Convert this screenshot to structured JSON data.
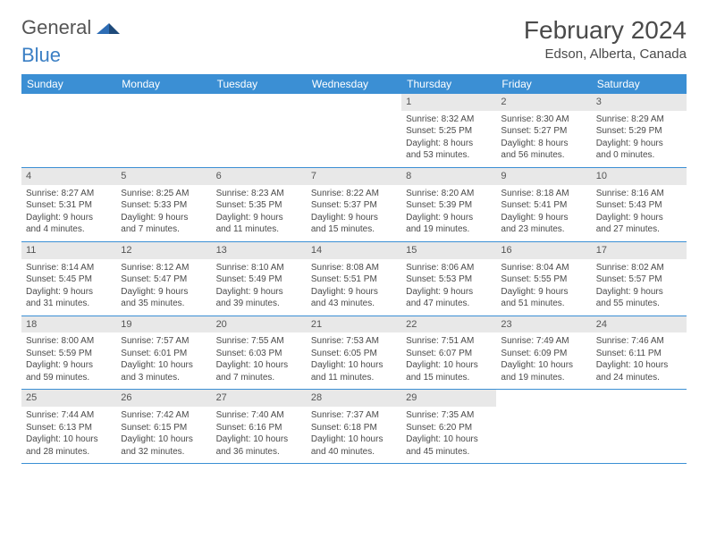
{
  "logo": {
    "part1": "General",
    "part2": "Blue"
  },
  "title": "February 2024",
  "location": "Edson, Alberta, Canada",
  "colors": {
    "header_bg": "#3b8fd4",
    "header_text": "#ffffff",
    "daynum_bg": "#e8e8e8",
    "border": "#3b8fd4",
    "text": "#4a4a4a",
    "logo_gray": "#555555",
    "logo_blue": "#3b7fc4"
  },
  "day_headers": [
    "Sunday",
    "Monday",
    "Tuesday",
    "Wednesday",
    "Thursday",
    "Friday",
    "Saturday"
  ],
  "weeks": [
    [
      {
        "n": "",
        "sr": "",
        "ss": "",
        "dl1": "",
        "dl2": ""
      },
      {
        "n": "",
        "sr": "",
        "ss": "",
        "dl1": "",
        "dl2": ""
      },
      {
        "n": "",
        "sr": "",
        "ss": "",
        "dl1": "",
        "dl2": ""
      },
      {
        "n": "",
        "sr": "",
        "ss": "",
        "dl1": "",
        "dl2": ""
      },
      {
        "n": "1",
        "sr": "Sunrise: 8:32 AM",
        "ss": "Sunset: 5:25 PM",
        "dl1": "Daylight: 8 hours",
        "dl2": "and 53 minutes."
      },
      {
        "n": "2",
        "sr": "Sunrise: 8:30 AM",
        "ss": "Sunset: 5:27 PM",
        "dl1": "Daylight: 8 hours",
        "dl2": "and 56 minutes."
      },
      {
        "n": "3",
        "sr": "Sunrise: 8:29 AM",
        "ss": "Sunset: 5:29 PM",
        "dl1": "Daylight: 9 hours",
        "dl2": "and 0 minutes."
      }
    ],
    [
      {
        "n": "4",
        "sr": "Sunrise: 8:27 AM",
        "ss": "Sunset: 5:31 PM",
        "dl1": "Daylight: 9 hours",
        "dl2": "and 4 minutes."
      },
      {
        "n": "5",
        "sr": "Sunrise: 8:25 AM",
        "ss": "Sunset: 5:33 PM",
        "dl1": "Daylight: 9 hours",
        "dl2": "and 7 minutes."
      },
      {
        "n": "6",
        "sr": "Sunrise: 8:23 AM",
        "ss": "Sunset: 5:35 PM",
        "dl1": "Daylight: 9 hours",
        "dl2": "and 11 minutes."
      },
      {
        "n": "7",
        "sr": "Sunrise: 8:22 AM",
        "ss": "Sunset: 5:37 PM",
        "dl1": "Daylight: 9 hours",
        "dl2": "and 15 minutes."
      },
      {
        "n": "8",
        "sr": "Sunrise: 8:20 AM",
        "ss": "Sunset: 5:39 PM",
        "dl1": "Daylight: 9 hours",
        "dl2": "and 19 minutes."
      },
      {
        "n": "9",
        "sr": "Sunrise: 8:18 AM",
        "ss": "Sunset: 5:41 PM",
        "dl1": "Daylight: 9 hours",
        "dl2": "and 23 minutes."
      },
      {
        "n": "10",
        "sr": "Sunrise: 8:16 AM",
        "ss": "Sunset: 5:43 PM",
        "dl1": "Daylight: 9 hours",
        "dl2": "and 27 minutes."
      }
    ],
    [
      {
        "n": "11",
        "sr": "Sunrise: 8:14 AM",
        "ss": "Sunset: 5:45 PM",
        "dl1": "Daylight: 9 hours",
        "dl2": "and 31 minutes."
      },
      {
        "n": "12",
        "sr": "Sunrise: 8:12 AM",
        "ss": "Sunset: 5:47 PM",
        "dl1": "Daylight: 9 hours",
        "dl2": "and 35 minutes."
      },
      {
        "n": "13",
        "sr": "Sunrise: 8:10 AM",
        "ss": "Sunset: 5:49 PM",
        "dl1": "Daylight: 9 hours",
        "dl2": "and 39 minutes."
      },
      {
        "n": "14",
        "sr": "Sunrise: 8:08 AM",
        "ss": "Sunset: 5:51 PM",
        "dl1": "Daylight: 9 hours",
        "dl2": "and 43 minutes."
      },
      {
        "n": "15",
        "sr": "Sunrise: 8:06 AM",
        "ss": "Sunset: 5:53 PM",
        "dl1": "Daylight: 9 hours",
        "dl2": "and 47 minutes."
      },
      {
        "n": "16",
        "sr": "Sunrise: 8:04 AM",
        "ss": "Sunset: 5:55 PM",
        "dl1": "Daylight: 9 hours",
        "dl2": "and 51 minutes."
      },
      {
        "n": "17",
        "sr": "Sunrise: 8:02 AM",
        "ss": "Sunset: 5:57 PM",
        "dl1": "Daylight: 9 hours",
        "dl2": "and 55 minutes."
      }
    ],
    [
      {
        "n": "18",
        "sr": "Sunrise: 8:00 AM",
        "ss": "Sunset: 5:59 PM",
        "dl1": "Daylight: 9 hours",
        "dl2": "and 59 minutes."
      },
      {
        "n": "19",
        "sr": "Sunrise: 7:57 AM",
        "ss": "Sunset: 6:01 PM",
        "dl1": "Daylight: 10 hours",
        "dl2": "and 3 minutes."
      },
      {
        "n": "20",
        "sr": "Sunrise: 7:55 AM",
        "ss": "Sunset: 6:03 PM",
        "dl1": "Daylight: 10 hours",
        "dl2": "and 7 minutes."
      },
      {
        "n": "21",
        "sr": "Sunrise: 7:53 AM",
        "ss": "Sunset: 6:05 PM",
        "dl1": "Daylight: 10 hours",
        "dl2": "and 11 minutes."
      },
      {
        "n": "22",
        "sr": "Sunrise: 7:51 AM",
        "ss": "Sunset: 6:07 PM",
        "dl1": "Daylight: 10 hours",
        "dl2": "and 15 minutes."
      },
      {
        "n": "23",
        "sr": "Sunrise: 7:49 AM",
        "ss": "Sunset: 6:09 PM",
        "dl1": "Daylight: 10 hours",
        "dl2": "and 19 minutes."
      },
      {
        "n": "24",
        "sr": "Sunrise: 7:46 AM",
        "ss": "Sunset: 6:11 PM",
        "dl1": "Daylight: 10 hours",
        "dl2": "and 24 minutes."
      }
    ],
    [
      {
        "n": "25",
        "sr": "Sunrise: 7:44 AM",
        "ss": "Sunset: 6:13 PM",
        "dl1": "Daylight: 10 hours",
        "dl2": "and 28 minutes."
      },
      {
        "n": "26",
        "sr": "Sunrise: 7:42 AM",
        "ss": "Sunset: 6:15 PM",
        "dl1": "Daylight: 10 hours",
        "dl2": "and 32 minutes."
      },
      {
        "n": "27",
        "sr": "Sunrise: 7:40 AM",
        "ss": "Sunset: 6:16 PM",
        "dl1": "Daylight: 10 hours",
        "dl2": "and 36 minutes."
      },
      {
        "n": "28",
        "sr": "Sunrise: 7:37 AM",
        "ss": "Sunset: 6:18 PM",
        "dl1": "Daylight: 10 hours",
        "dl2": "and 40 minutes."
      },
      {
        "n": "29",
        "sr": "Sunrise: 7:35 AM",
        "ss": "Sunset: 6:20 PM",
        "dl1": "Daylight: 10 hours",
        "dl2": "and 45 minutes."
      },
      {
        "n": "",
        "sr": "",
        "ss": "",
        "dl1": "",
        "dl2": ""
      },
      {
        "n": "",
        "sr": "",
        "ss": "",
        "dl1": "",
        "dl2": ""
      }
    ]
  ]
}
